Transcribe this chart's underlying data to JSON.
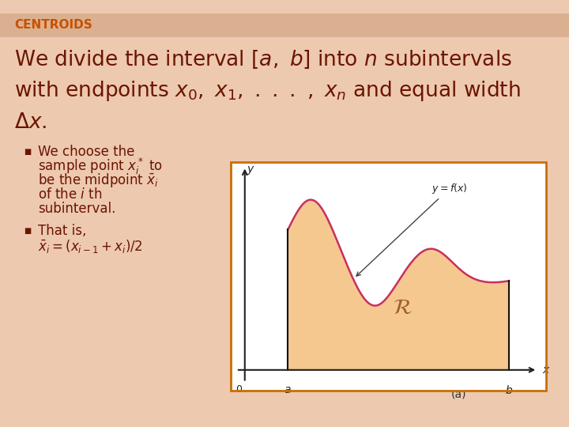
{
  "slide_bg": "#edc9b0",
  "header_bar_color": "#dbb090",
  "header_text": "CENTROIDS",
  "header_color": "#c85000",
  "title_color": "#6b1500",
  "bullet_color": "#6b1500",
  "graph_border_color": "#c87000",
  "graph_bg": "#ffffff",
  "curve_color": "#c83060",
  "fill_color": "#f5c890",
  "axis_color": "#222222",
  "text_color": "#6b1500",
  "a_val": 1.5,
  "b_val": 9.2,
  "xlim": [
    -0.5,
    10.5
  ],
  "ylim": [
    -0.5,
    5.0
  ]
}
